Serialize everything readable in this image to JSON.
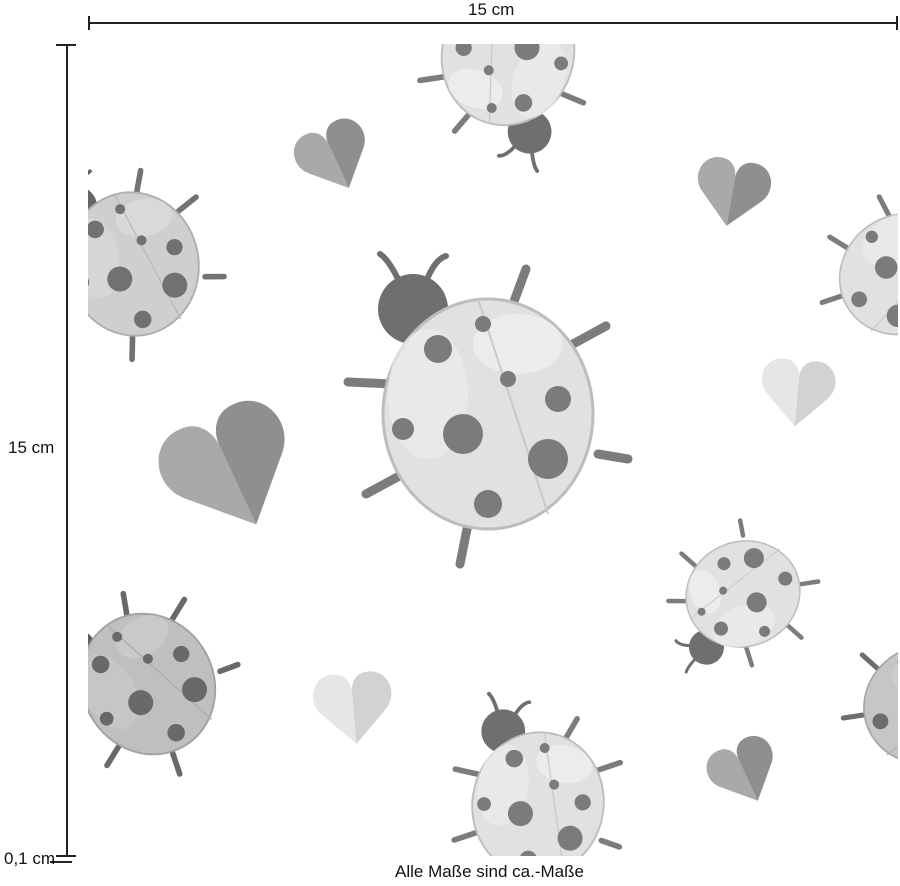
{
  "dimensions": {
    "width_label": "15 cm",
    "height_label": "15 cm",
    "depth_label": "0,1 cm"
  },
  "caption": "Alle Maße sind ca.-Maße",
  "pattern": {
    "motifs": [
      "ladybug-icon",
      "heart-icon"
    ],
    "colors": {
      "body_light": "#e3e3e3",
      "body_mid": "#c7c7c7",
      "body_dark": "#a9a9a9",
      "head": "#6f6f6f",
      "spot": "#7b7b7b",
      "heart_dark": "#9a9a9a",
      "heart_light": "#dcdcdc"
    }
  }
}
